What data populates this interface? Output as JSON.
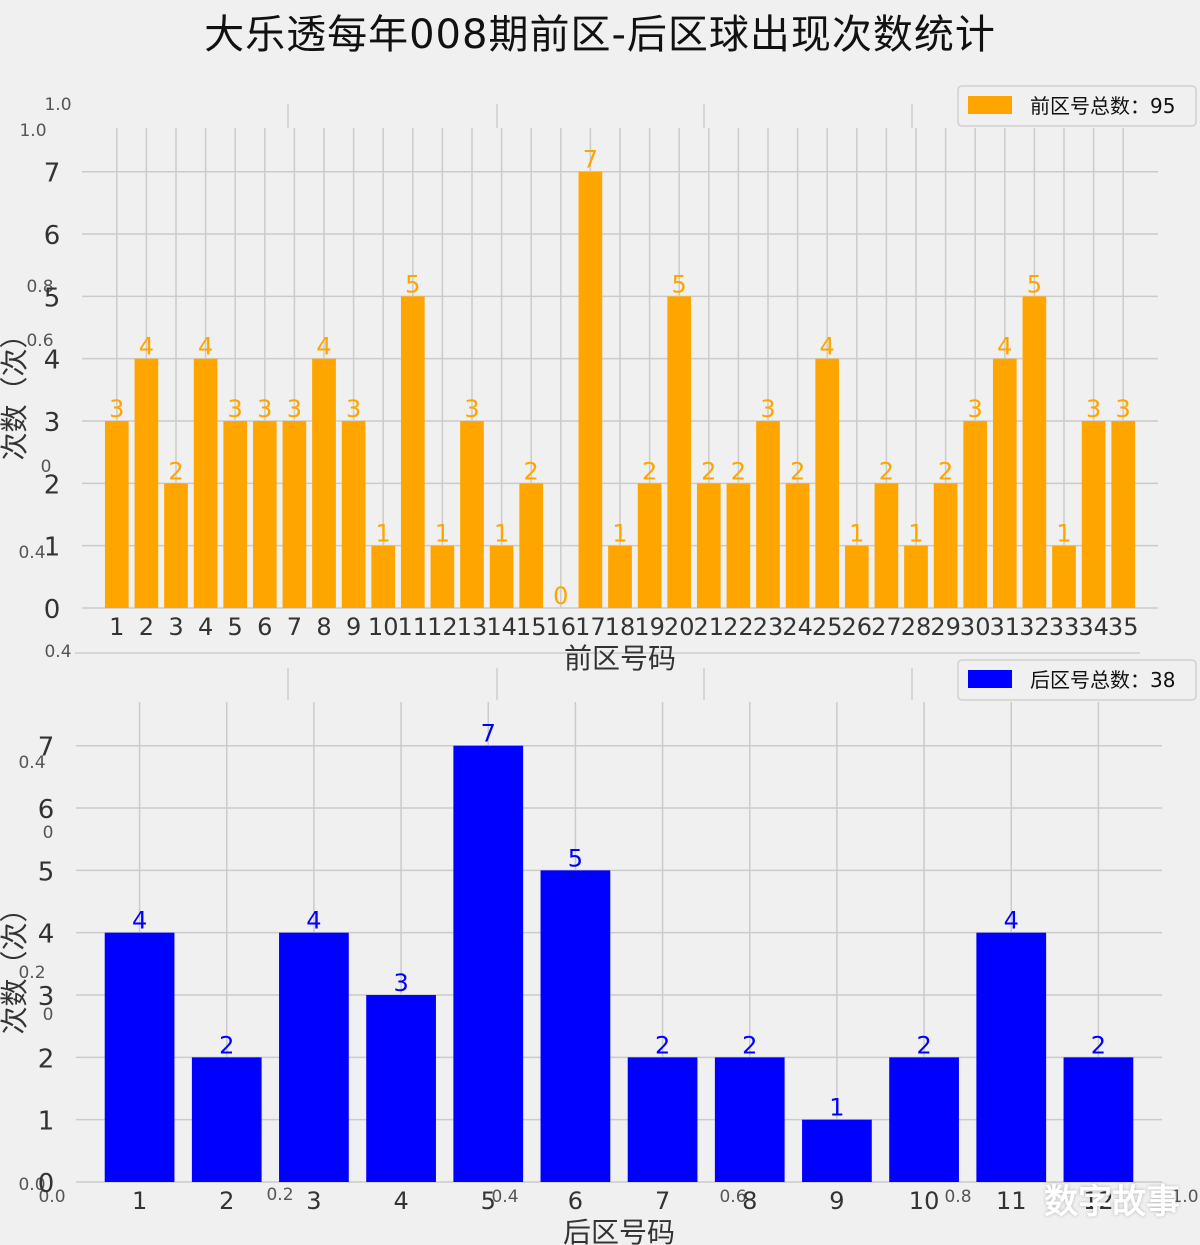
{
  "title": "大乐透每年008期前区-后区球出现次数统计",
  "watermark": "数字故事",
  "chart_data": [
    {
      "type": "bar",
      "xlabel": "前区号码",
      "ylabel": "次数（次）",
      "legend": "前区号总数：95",
      "legend_position": "top-right",
      "color": "#ffa500",
      "ylim": [
        0,
        7.3
      ],
      "yticks": [
        0,
        1,
        2,
        3,
        4,
        5,
        6,
        7
      ],
      "grid": true,
      "categories": [
        "1",
        "2",
        "3",
        "4",
        "5",
        "6",
        "7",
        "8",
        "9",
        "10",
        "11",
        "12",
        "13",
        "14",
        "15",
        "16",
        "17",
        "18",
        "19",
        "20",
        "21",
        "22",
        "23",
        "24",
        "25",
        "26",
        "27",
        "28",
        "29",
        "30",
        "31",
        "32",
        "33",
        "34",
        "35"
      ],
      "values": [
        3,
        4,
        2,
        4,
        3,
        3,
        3,
        4,
        3,
        1,
        5,
        1,
        3,
        1,
        2,
        0,
        7,
        1,
        2,
        5,
        2,
        2,
        3,
        2,
        4,
        1,
        2,
        1,
        2,
        3,
        4,
        5,
        1,
        3,
        3
      ]
    },
    {
      "type": "bar",
      "xlabel": "后区号码",
      "ylabel": "次数（次）",
      "legend": "后区号总数：38",
      "legend_position": "top-right",
      "color": "#0000ff",
      "ylim": [
        0,
        7.3
      ],
      "yticks": [
        0,
        1,
        2,
        3,
        4,
        5,
        6,
        7
      ],
      "grid": true,
      "categories": [
        "1",
        "2",
        "3",
        "4",
        "5",
        "6",
        "7",
        "8",
        "9",
        "10",
        "11",
        "12"
      ],
      "values": [
        4,
        2,
        4,
        3,
        7,
        5,
        2,
        2,
        1,
        2,
        4,
        2
      ]
    }
  ],
  "ghost_axis": {
    "top_labels": [
      "1.0",
      "1.0",
      "0.8",
      "0.6",
      "0.4"
    ],
    "mid_labels": [
      "0.4",
      "0.4",
      "0.2"
    ],
    "bottom_labels": [
      "0.0",
      "0.0",
      "0.2",
      "0.4",
      "0.6",
      "0.8",
      "1.0"
    ]
  }
}
